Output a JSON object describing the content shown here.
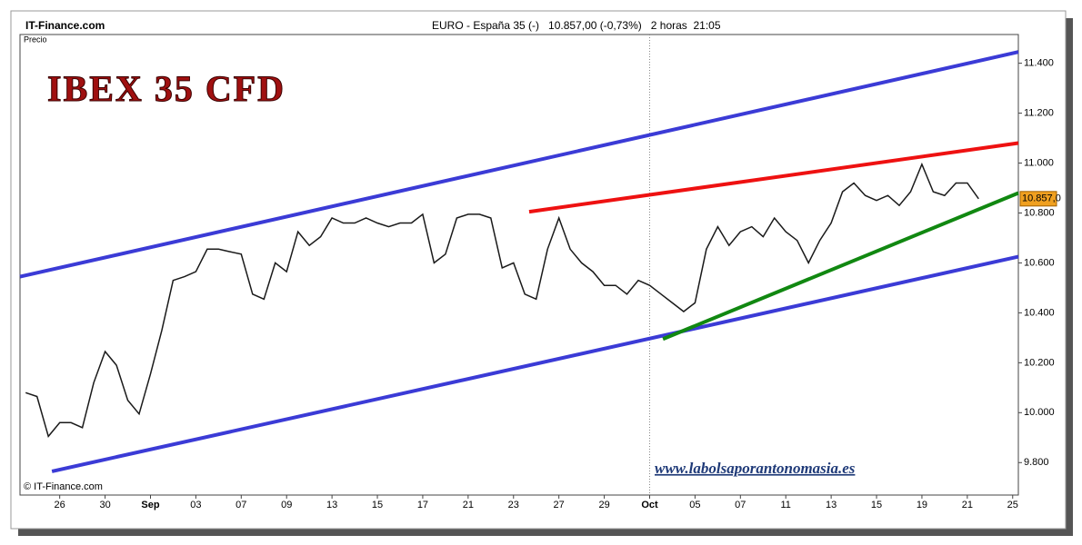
{
  "chart_data": {
    "type": "line",
    "source": "IT-Finance.com",
    "title": "EURO - España 35 (-)   10.857,00 (-0,73%)   2 horas  21:05",
    "y_label": "Precio",
    "copyright": "© IT-Finance.com",
    "watermark": "IBEX 35 CFD",
    "url": "www.labolsaporantonomasia.es",
    "categories": [
      null,
      null,
      null,
      "26",
      null,
      null,
      null,
      "30",
      null,
      null,
      null,
      "Sep",
      null,
      null,
      null,
      "03",
      null,
      null,
      null,
      "07",
      null,
      null,
      null,
      "09",
      null,
      null,
      null,
      "13",
      null,
      null,
      null,
      "15",
      null,
      null,
      null,
      "17",
      null,
      null,
      null,
      "21",
      null,
      null,
      null,
      "23",
      null,
      null,
      null,
      "27",
      null,
      null,
      null,
      "29",
      null,
      null,
      null,
      "Oct",
      null,
      null,
      null,
      "05",
      null,
      null,
      null,
      "07",
      null,
      null,
      null,
      "11",
      null,
      null,
      null,
      "13",
      null,
      null,
      null,
      "15",
      null,
      null,
      null,
      "19",
      null,
      null,
      null,
      "21",
      null,
      null,
      null,
      "25"
    ],
    "series": [
      {
        "color": "#1a1a1a",
        "values": [
          10080,
          10065,
          9905,
          9960,
          9960,
          9940,
          10120,
          10245,
          10190,
          10050,
          9995,
          10155,
          10330,
          10530,
          10545,
          10565,
          10655,
          10655,
          10645,
          10635,
          10475,
          10455,
          10600,
          10565,
          10725,
          10670,
          10705,
          10780,
          10760,
          10760,
          10780,
          10760,
          10745,
          10760,
          10760,
          10795,
          10600,
          10635,
          10780,
          10795,
          10795,
          10780,
          10580,
          10600,
          10475,
          10455,
          10655,
          10780,
          10655,
          10600,
          10565,
          10510,
          10510,
          10475,
          10530,
          10510,
          10475,
          10440,
          10405,
          10440,
          10655,
          10745,
          10670,
          10725,
          10745,
          10705,
          10780,
          10725,
          10690,
          10600,
          10690,
          10760,
          10885,
          10920,
          10870,
          10850,
          10870,
          10830,
          10885,
          10995,
          10885,
          10870,
          10920,
          10920,
          10857,
          null,
          null,
          null
        ]
      }
    ],
    "last": {
      "value": 10857,
      "label": "10.857,0"
    },
    "trend_lines": [
      {
        "color": "#3b3bd6",
        "values": [
          10545,
          11445
        ]
      },
      {
        "color": "#3b3bd6",
        "values": [
          9765,
          10625
        ]
      },
      {
        "color": "#ee1111",
        "values": [
          10805,
          11080
        ]
      },
      {
        "color": "#118811",
        "values": [
          10295,
          10880
        ]
      }
    ],
    "ylim": [
      9670,
      11515
    ],
    "yticks": [
      {
        "value": 9800,
        "label": "9.800"
      },
      {
        "value": 10000,
        "label": "10.000"
      },
      {
        "value": 10200,
        "label": "10.200"
      },
      {
        "value": 10400,
        "label": "10.400"
      },
      {
        "value": 10600,
        "label": "10.600"
      },
      {
        "value": 10800,
        "label": "10.800"
      },
      {
        "value": 11000,
        "label": "11.000"
      },
      {
        "value": 11200,
        "label": "11.200"
      },
      {
        "value": 11400,
        "label": "11.400"
      }
    ],
    "bold_ticks": [
      "Sep",
      "Oct"
    ],
    "grid_at": "Oct"
  }
}
